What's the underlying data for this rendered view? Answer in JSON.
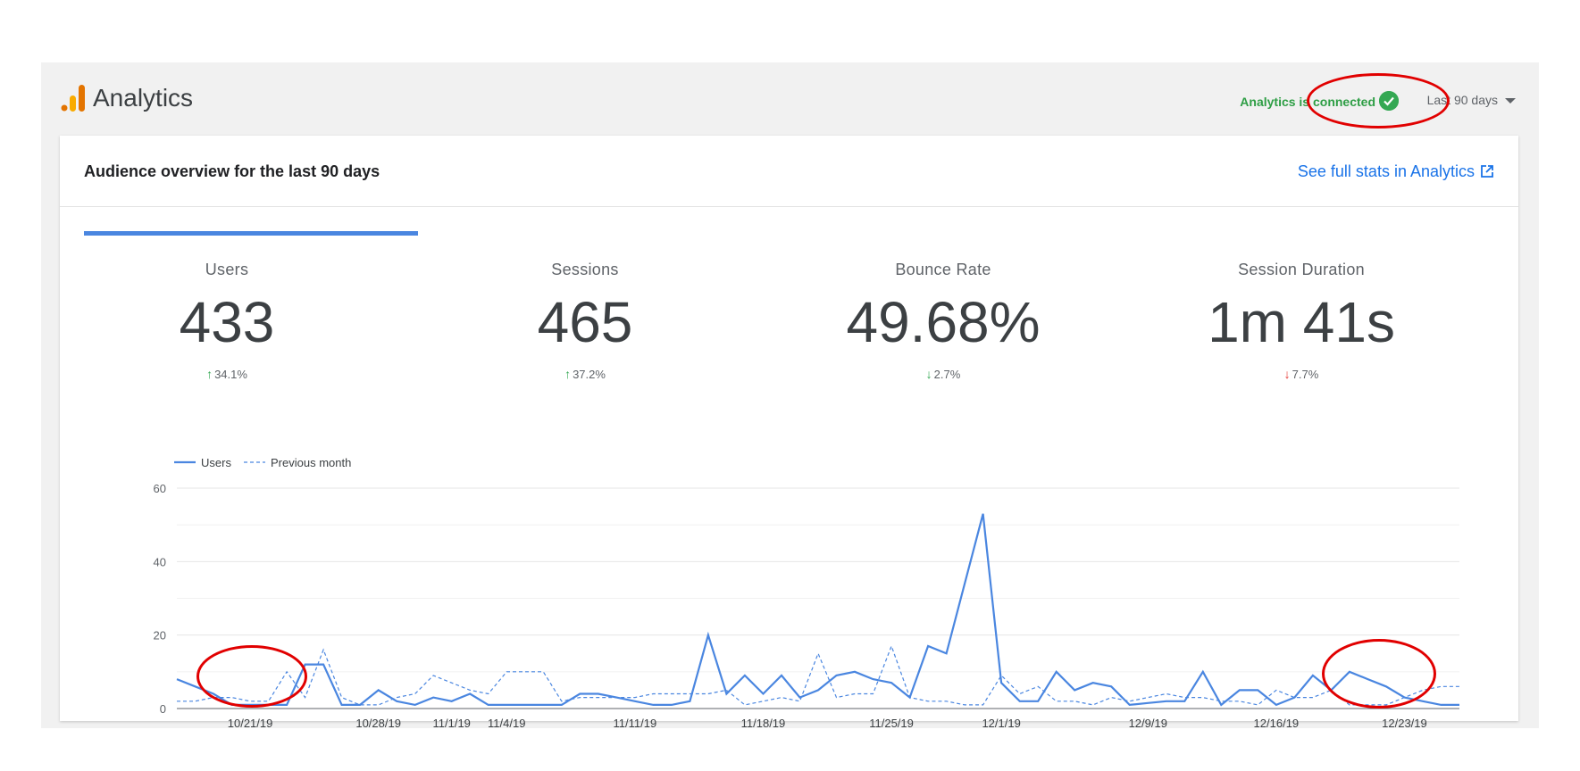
{
  "header": {
    "app_title": "Analytics",
    "status": "Analytics is connected",
    "date_range": "Last 90 days"
  },
  "card": {
    "title": "Audience overview for the last 90 days",
    "full_stats_link": "See full stats in Analytics"
  },
  "metrics": [
    {
      "label": "Users",
      "value": "433",
      "delta": "34.1%",
      "direction": "up"
    },
    {
      "label": "Sessions",
      "value": "465",
      "delta": "37.2%",
      "direction": "up"
    },
    {
      "label": "Bounce Rate",
      "value": "49.68%",
      "delta": "2.7%",
      "direction": "down-good"
    },
    {
      "label": "Session Duration",
      "value": "1m 41s",
      "delta": "7.7%",
      "direction": "down-bad"
    }
  ],
  "colors": {
    "accent": "#4a86e0",
    "positive": "#34a853",
    "negative": "#e53935",
    "annotation": "#e10000"
  },
  "chart_data": {
    "type": "line",
    "ylim": [
      0,
      60
    ],
    "yticks": [
      0,
      20,
      40,
      60
    ],
    "grid": true,
    "legend": "top-left",
    "x_labels": [
      "10/21/19",
      "10/28/19",
      "11/1/19",
      "11/4/19",
      "11/11/19",
      "11/18/19",
      "11/25/19",
      "12/1/19",
      "12/9/19",
      "12/16/19",
      "12/23/19"
    ],
    "x_label_days": [
      4,
      11,
      15,
      18,
      25,
      32,
      39,
      45,
      53,
      60,
      67
    ],
    "series": [
      {
        "name": "Users",
        "style": "solid",
        "values": [
          8,
          6,
          4,
          1,
          1,
          1,
          1,
          12,
          12,
          1,
          1,
          5,
          2,
          1,
          3,
          2,
          4,
          1,
          1,
          1,
          1,
          1,
          4,
          4,
          3,
          2,
          1,
          1,
          2,
          20,
          4,
          9,
          4,
          9,
          3,
          5,
          9,
          10,
          8,
          7,
          3,
          17,
          15,
          34,
          53,
          7,
          2,
          2,
          10,
          5,
          7,
          6,
          1,
          1.5,
          2,
          2,
          10,
          1,
          5,
          5,
          1,
          3,
          9,
          5,
          10,
          8,
          6,
          3,
          2,
          1,
          1
        ]
      },
      {
        "name": "Previous month",
        "style": "dashed",
        "values": [
          2,
          2,
          3,
          3,
          2,
          2,
          10,
          3,
          16,
          3,
          1,
          1,
          3,
          4,
          9,
          7,
          5,
          4,
          10,
          10,
          10,
          2,
          3,
          3,
          3,
          3,
          4,
          4,
          4,
          4,
          5,
          1,
          2,
          3,
          2,
          15,
          3,
          4,
          4,
          17,
          3,
          2,
          2,
          1,
          1,
          9,
          4,
          6,
          2,
          2,
          1,
          3,
          2,
          3,
          4,
          3,
          3,
          2,
          2,
          1,
          5,
          3,
          3,
          5,
          1,
          1,
          1,
          3,
          5,
          6,
          6
        ]
      }
    ]
  }
}
